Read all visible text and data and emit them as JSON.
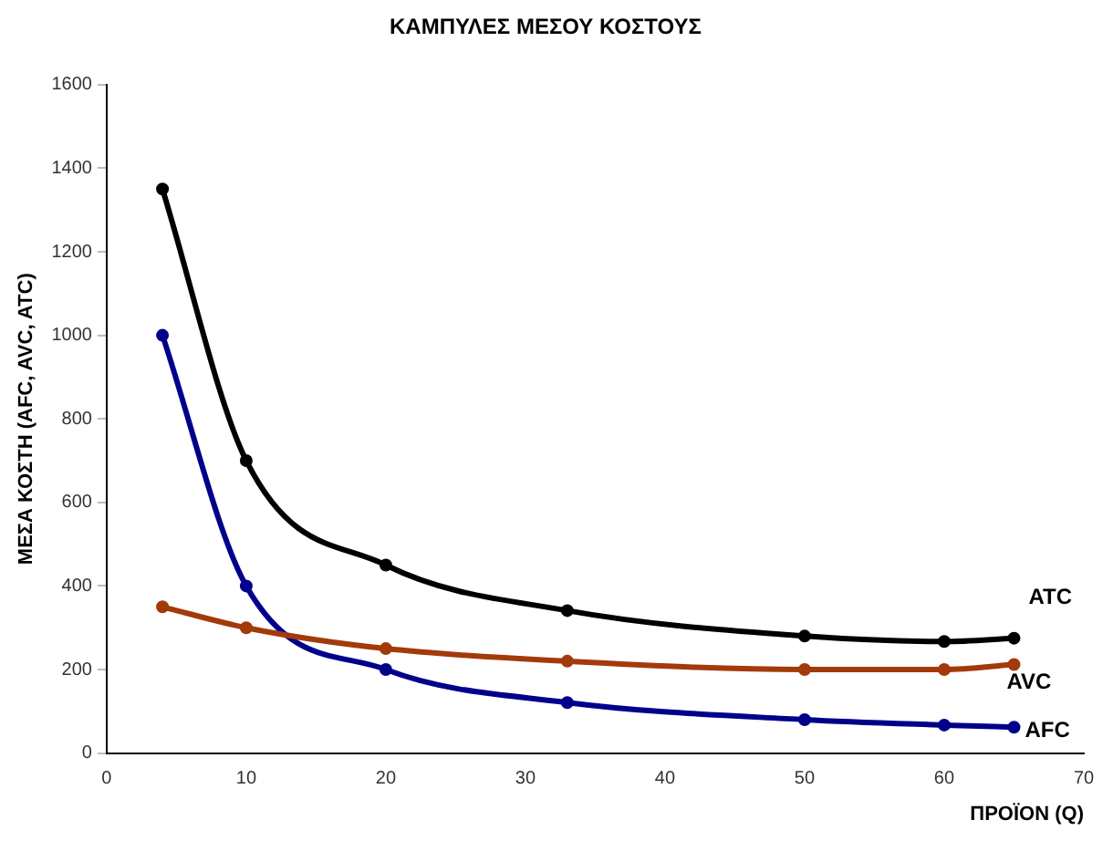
{
  "chart_data": {
    "type": "line",
    "title": "ΚΑΜΠΥΛΕΣ ΜΕΣΟΥ ΚΟΣΤΟΥΣ",
    "xlabel": "ΠΡΟΪΟΝ (Q)",
    "ylabel": "ΜΕΣΑ ΚΟΣΤΗ (AFC, AVC, ATC)",
    "x": [
      4,
      10,
      20,
      33,
      50,
      60,
      65
    ],
    "series": [
      {
        "name": "ATC",
        "color": "#000000",
        "values": [
          1350,
          700,
          450,
          341,
          280,
          267,
          275
        ]
      },
      {
        "name": "AVC",
        "color": "#a33a0a",
        "values": [
          350,
          300,
          250,
          220,
          200,
          200,
          212
        ]
      },
      {
        "name": "AFC",
        "color": "#00008b",
        "values": [
          1000,
          400,
          200,
          121,
          80,
          67,
          62
        ]
      }
    ],
    "xlim": [
      0,
      70
    ],
    "xticks": [
      0,
      10,
      20,
      30,
      40,
      50,
      60,
      70
    ],
    "ylim": [
      0,
      1600
    ],
    "yticks": [
      0,
      200,
      400,
      600,
      800,
      1000,
      1200,
      1400,
      1600
    ],
    "grid": false,
    "legend": false,
    "marker": "circle",
    "line_style": "solid"
  }
}
